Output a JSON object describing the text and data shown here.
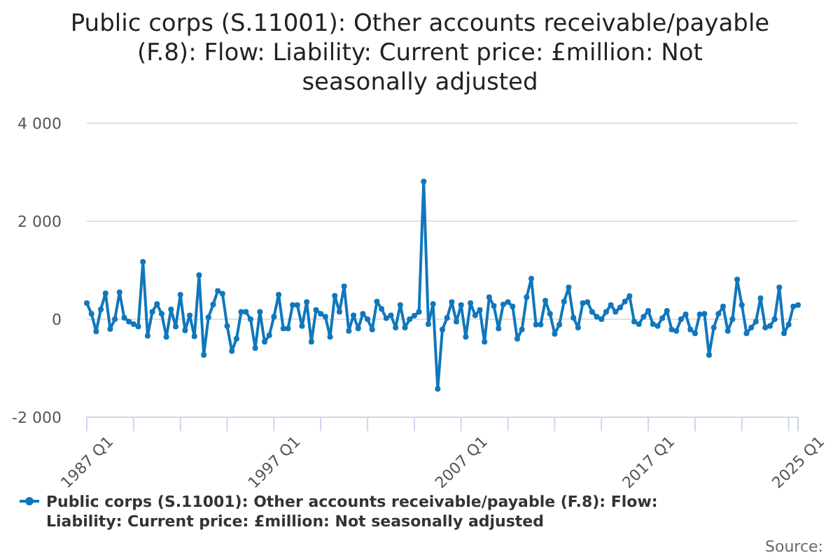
{
  "chart_data": {
    "type": "line",
    "title": "Public corps (S.11001): Other accounts receivable/payable (F.8): Flow: Liability: Current price: £million: Not seasonally adjusted",
    "categories": [
      "1987 Q1",
      null,
      null,
      null,
      null,
      null,
      null,
      null,
      null,
      null,
      null,
      null,
      null,
      null,
      null,
      null,
      null,
      null,
      null,
      null,
      null,
      null,
      null,
      null,
      null,
      null,
      null,
      null,
      null,
      null,
      null,
      null,
      null,
      null,
      null,
      null,
      null,
      null,
      null,
      null,
      "1997 Q1",
      null,
      null,
      null,
      null,
      null,
      null,
      null,
      null,
      null,
      null,
      null,
      null,
      null,
      null,
      null,
      null,
      null,
      null,
      null,
      null,
      null,
      null,
      null,
      null,
      null,
      null,
      null,
      null,
      null,
      null,
      null,
      null,
      null,
      null,
      null,
      null,
      null,
      null,
      null,
      "2007 Q1",
      null,
      null,
      null,
      null,
      null,
      null,
      null,
      null,
      null,
      null,
      null,
      null,
      null,
      null,
      null,
      null,
      null,
      null,
      null,
      null,
      null,
      null,
      null,
      null,
      null,
      null,
      null,
      null,
      null,
      null,
      null,
      null,
      null,
      null,
      null,
      null,
      null,
      null,
      null,
      "2017 Q1",
      null,
      null,
      null,
      null,
      null,
      null,
      null,
      null,
      null,
      null,
      null,
      null,
      null,
      null,
      null,
      null,
      null,
      null,
      null,
      null,
      null,
      null,
      null,
      null,
      null,
      null,
      null,
      null,
      null,
      null,
      null,
      "2025 Q1"
    ],
    "series": [
      {
        "name": "Public corps (S.11001): Other accounts receivable/payable (F.8): Flow: Liability: Current price: £million: Not seasonally adjusted",
        "color": "#1077bc",
        "values": [
          330,
          110,
          -250,
          200,
          530,
          -200,
          0,
          550,
          30,
          -50,
          -100,
          -150,
          1170,
          -340,
          150,
          310,
          110,
          -360,
          200,
          -150,
          500,
          -230,
          80,
          -350,
          900,
          -730,
          40,
          300,
          580,
          520,
          -140,
          -650,
          -400,
          150,
          150,
          0,
          -590,
          150,
          -460,
          -330,
          50,
          500,
          -190,
          -190,
          290,
          290,
          -140,
          350,
          -460,
          190,
          110,
          50,
          -360,
          480,
          150,
          670,
          -240,
          80,
          -190,
          110,
          0,
          -210,
          360,
          210,
          20,
          80,
          -170,
          290,
          -170,
          0,
          70,
          150,
          2810,
          -100,
          310,
          -1420,
          -210,
          30,
          350,
          -50,
          290,
          -360,
          330,
          80,
          190,
          -460,
          450,
          270,
          -190,
          300,
          350,
          260,
          -400,
          -210,
          450,
          830,
          -110,
          -110,
          380,
          110,
          -300,
          -110,
          360,
          650,
          30,
          -170,
          330,
          350,
          150,
          50,
          0,
          150,
          290,
          150,
          240,
          360,
          470,
          -50,
          -100,
          50,
          170,
          -100,
          -140,
          20,
          170,
          -210,
          -240,
          0,
          100,
          -210,
          -290,
          100,
          110,
          -730,
          -170,
          110,
          260,
          -240,
          0,
          810,
          290,
          -290,
          -170,
          -50,
          430,
          -170,
          -140,
          0,
          650,
          -290,
          -110,
          260,
          290
        ]
      }
    ],
    "ylim": [
      -2000,
      4000
    ],
    "yticks": [
      {
        "value": -2000,
        "label": "-2 000"
      },
      {
        "value": 0,
        "label": "0"
      },
      {
        "value": 2000,
        "label": "2 000"
      },
      {
        "value": 4000,
        "label": "4 000"
      }
    ],
    "grid": "y",
    "marker": "circle",
    "line_style": "solid",
    "legend": "bottom",
    "annotations": [
      "Source:"
    ]
  }
}
